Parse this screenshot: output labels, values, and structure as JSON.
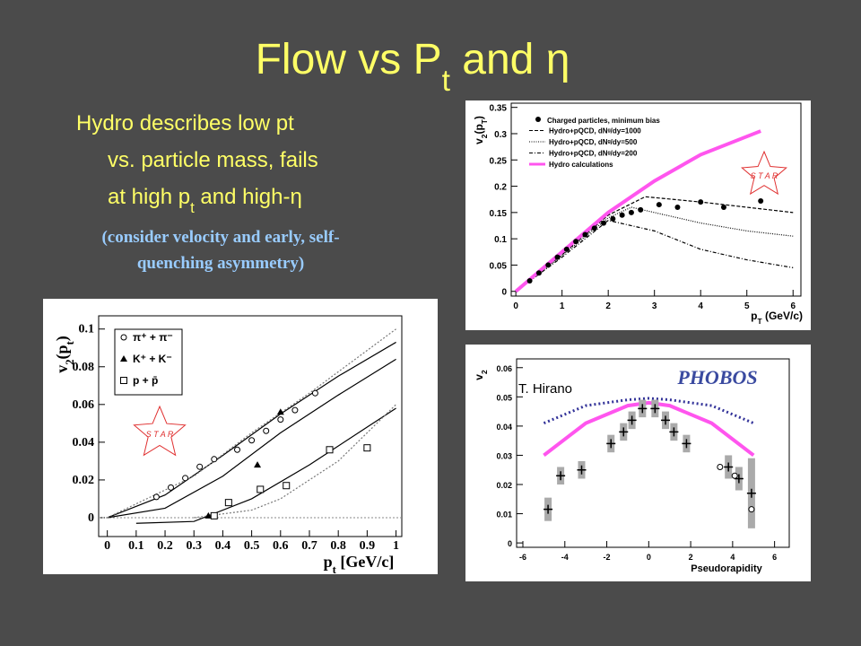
{
  "title": [
    "Flow vs P",
    "t",
    " and η"
  ],
  "bullet": [
    [
      "Hydro describes low pt"
    ],
    [
      "vs. particle mass, fails"
    ],
    [
      "at high p",
      "t",
      " and high-η"
    ]
  ],
  "note": [
    "(consider velocity and early, self-",
    "quenching asymmetry)"
  ],
  "figures": [
    {
      "type": "scatter",
      "xlim": [
        -0.03,
        1.02
      ],
      "ylim": [
        -0.01,
        0.107
      ],
      "xticks": [
        0,
        0.1,
        0.2,
        0.3,
        0.4,
        0.5,
        0.6,
        0.7,
        0.8,
        0.9,
        1
      ],
      "yticks": [
        0,
        0.02,
        0.04,
        0.06,
        0.08,
        0.1
      ],
      "xlabel": [
        "p",
        "t",
        " [GeV/c]"
      ],
      "ylabel": [
        "v",
        "2",
        "(p",
        "t",
        ")"
      ],
      "logo": "S T A R",
      "series": [
        {
          "name": "π⁺ + π⁻",
          "marker": "open-circle",
          "color": "#000000",
          "x": [
            0.17,
            0.22,
            0.27,
            0.32,
            0.37,
            0.45,
            0.5,
            0.55,
            0.6,
            0.65,
            0.72
          ],
          "values": [
            0.011,
            0.016,
            0.021,
            0.027,
            0.031,
            0.036,
            0.041,
            0.046,
            0.052,
            0.057,
            0.066
          ]
        },
        {
          "name": "K⁺ + K⁻",
          "marker": "triangle",
          "color": "#000000",
          "x": [
            0.35,
            0.52,
            0.6
          ],
          "values": [
            0.001,
            0.028,
            0.056
          ]
        },
        {
          "name": "p + p̄",
          "marker": "open-square",
          "color": "#000000",
          "x": [
            0.37,
            0.42,
            0.53,
            0.62,
            0.77,
            0.9
          ],
          "values": [
            0.001,
            0.008,
            0.015,
            0.017,
            0.036,
            0.037
          ]
        }
      ],
      "curves": [
        {
          "color": "#000000",
          "dash": "none",
          "x": [
            0,
            0.2,
            0.4,
            0.6,
            0.8,
            1
          ],
          "values": [
            0,
            0.012,
            0.033,
            0.055,
            0.075,
            0.093
          ]
        },
        {
          "color": "#000000",
          "dash": "none",
          "x": [
            0,
            0.2,
            0.4,
            0.6,
            0.8,
            1
          ],
          "values": [
            0,
            0.005,
            0.022,
            0.045,
            0.065,
            0.084
          ]
        },
        {
          "color": "#000000",
          "dash": "none",
          "x": [
            0.1,
            0.3,
            0.5,
            0.7,
            0.9,
            1
          ],
          "values": [
            -0.003,
            -0.002,
            0.01,
            0.028,
            0.048,
            0.058
          ]
        },
        {
          "color": "#777777",
          "dash": "2 2",
          "x": [
            0,
            0.3,
            0.5,
            0.7,
            1
          ],
          "values": [
            0,
            0.022,
            0.045,
            0.066,
            0.1
          ]
        },
        {
          "color": "#777777",
          "dash": "2 2",
          "x": [
            0.3,
            0.5,
            0.6,
            0.8,
            1
          ],
          "values": [
            0,
            0.004,
            0.01,
            0.03,
            0.06
          ]
        }
      ]
    },
    {
      "type": "scatter",
      "xlim": [
        -0.1,
        6.17
      ],
      "ylim": [
        -0.009,
        0.358
      ],
      "xticks": [
        0,
        1,
        2,
        3,
        4,
        5,
        6
      ],
      "yticks": [
        0,
        0.05,
        0.1,
        0.15,
        0.2,
        0.25,
        0.3,
        0.35
      ],
      "xlabel": [
        "p",
        "T",
        " (GeV/c)"
      ],
      "ylabel": [
        "v",
        "2",
        "(p",
        "T",
        ")"
      ],
      "logo": "S T A R",
      "series": [
        {
          "name": "Charged particles, minimum bias",
          "marker": "dot",
          "color": "#000000",
          "x": [
            0.3,
            0.5,
            0.7,
            0.9,
            1.1,
            1.3,
            1.5,
            1.7,
            1.9,
            2.1,
            2.3,
            2.5,
            2.7,
            3.1,
            3.5,
            4.0,
            4.5,
            5.3
          ],
          "values": [
            0.02,
            0.035,
            0.05,
            0.065,
            0.08,
            0.095,
            0.108,
            0.12,
            0.13,
            0.138,
            0.145,
            0.15,
            0.155,
            0.165,
            0.16,
            0.17,
            0.16,
            0.172
          ]
        }
      ],
      "curves": [
        {
          "name": "Hydro+pQCD, dNᵍ/dy=1000",
          "color": "#000000",
          "dash": "4 2",
          "x": [
            0,
            1,
            2,
            2.8,
            4,
            5,
            6
          ],
          "values": [
            0,
            0.07,
            0.145,
            0.18,
            0.17,
            0.16,
            0.15
          ]
        },
        {
          "name": "Hydro+pQCD, dNᵍ/dy=500",
          "color": "#000000",
          "dash": "1 1.5",
          "x": [
            0,
            1,
            2,
            2.5,
            4,
            5,
            6
          ],
          "values": [
            0,
            0.068,
            0.14,
            0.16,
            0.13,
            0.115,
            0.105
          ]
        },
        {
          "name": "Hydro+pQCD, dNᵍ/dy=200",
          "color": "#000000",
          "dash": "4 2 1 2",
          "x": [
            0,
            1,
            2,
            3,
            4,
            5,
            6
          ],
          "values": [
            0,
            0.065,
            0.135,
            0.115,
            0.08,
            0.06,
            0.045
          ]
        },
        {
          "name": "Hydro calculations",
          "color": "#ff55ee",
          "dash": "none",
          "x": [
            0,
            1,
            2,
            3,
            4,
            5.3
          ],
          "values": [
            0,
            0.075,
            0.15,
            0.21,
            0.26,
            0.305
          ]
        }
      ]
    },
    {
      "type": "scatter",
      "xlim": [
        -6.3,
        6.7
      ],
      "ylim": [
        -0.0015,
        0.063
      ],
      "xticks": [
        -6,
        -4,
        -2,
        0,
        2,
        4,
        6
      ],
      "yticks": [
        0,
        0.01,
        0.02,
        0.03,
        0.04,
        0.05,
        0.06
      ],
      "xlabel": [
        "Pseudorapidity"
      ],
      "ylabel": [
        "v",
        "2"
      ],
      "annotation": "T. Hirano",
      "logo": "PHOBOS",
      "series": [
        {
          "marker": "plus",
          "color": "#000000",
          "x": [
            -4.8,
            -4.2,
            -3.2,
            -1.8,
            -1.2,
            -0.8,
            -0.3,
            0.3,
            0.8,
            1.2,
            1.8,
            3.8,
            4.3,
            4.9
          ],
          "values": [
            0.0115,
            0.023,
            0.025,
            0.034,
            0.038,
            0.042,
            0.046,
            0.046,
            0.042,
            0.038,
            0.034,
            0.026,
            0.022,
            0.017
          ],
          "errors": [
            0.004,
            0.003,
            0.003,
            0.003,
            0.003,
            0.003,
            0.003,
            0.003,
            0.003,
            0.003,
            0.003,
            0.004,
            0.004,
            0.012
          ]
        },
        {
          "marker": "open-circle",
          "color": "#000000",
          "x": [
            3.4,
            4.1,
            4.9
          ],
          "values": [
            0.026,
            0.023,
            0.0115
          ]
        }
      ],
      "curves": [
        {
          "color": "#ff55ee",
          "dash": "none",
          "x": [
            -5,
            -3,
            -1,
            0,
            1,
            3,
            5
          ],
          "values": [
            0.03,
            0.041,
            0.047,
            0.048,
            0.047,
            0.041,
            0.03
          ]
        },
        {
          "color": "#333399",
          "dash": "2 3",
          "x": [
            -5,
            -3,
            -1,
            0,
            1,
            3,
            5
          ],
          "values": [
            0.041,
            0.047,
            0.049,
            0.0495,
            0.049,
            0.047,
            0.041
          ]
        }
      ]
    }
  ]
}
